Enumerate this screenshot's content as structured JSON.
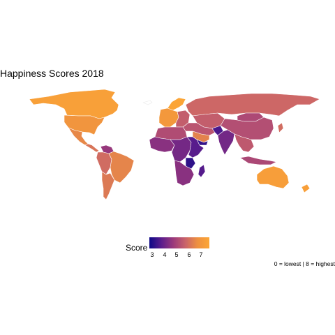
{
  "map": {
    "title": "Happiness Scores 2018",
    "caption": "0 = lowest | 8 = highest"
  },
  "legend": {
    "title": "Score",
    "ticks": [
      "3",
      "4",
      "5",
      "6",
      "7"
    ],
    "min": 2.9,
    "max": 7.6,
    "colors": [
      "#0d0887",
      "#5b1d8c",
      "#9c3a7b",
      "#c9636a",
      "#ee9040",
      "#fca636"
    ]
  },
  "regions": [
    {
      "name": "Canada",
      "score": 7.33
    },
    {
      "name": "USA",
      "score": 6.89
    },
    {
      "name": "Mexico",
      "score": 6.49
    },
    {
      "name": "Central America",
      "score": 6.1
    },
    {
      "name": "Venezuela",
      "score": 4.71
    },
    {
      "name": "Brazil",
      "score": 6.42
    },
    {
      "name": "Andean South America",
      "score": 5.9
    },
    {
      "name": "Southern Cone",
      "score": 6.2
    },
    {
      "name": "Greenland",
      "score": null
    },
    {
      "name": "Nordics",
      "score": 7.55
    },
    {
      "name": "Western Europe",
      "score": 7.0
    },
    {
      "name": "Eastern Europe",
      "score": 5.6
    },
    {
      "name": "Russia",
      "score": 5.81
    },
    {
      "name": "Central Asia",
      "score": 5.6
    },
    {
      "name": "China",
      "score": 5.25
    },
    {
      "name": "Mongolia",
      "score": 5.13
    },
    {
      "name": "Middle East",
      "score": 5.4
    },
    {
      "name": "Saudi Arabia",
      "score": 6.37
    },
    {
      "name": "Yemen",
      "score": 3.36
    },
    {
      "name": "Afghanistan",
      "score": 3.63
    },
    {
      "name": "India",
      "score": 4.19
    },
    {
      "name": "Southeast Asia",
      "score": 5.5
    },
    {
      "name": "Japan",
      "score": 5.92
    },
    {
      "name": "North Africa",
      "score": 5.2
    },
    {
      "name": "West Africa",
      "score": 4.5
    },
    {
      "name": "Central Africa",
      "score": 4.2
    },
    {
      "name": "East Africa",
      "score": 3.8
    },
    {
      "name": "Tanzania",
      "score": 3.3
    },
    {
      "name": "Southern Africa",
      "score": 4.5
    },
    {
      "name": "Madagascar",
      "score": 3.77
    },
    {
      "name": "Indonesia",
      "score": 5.09
    },
    {
      "name": "Australia",
      "score": 7.27
    },
    {
      "name": "New Zealand",
      "score": 7.32
    }
  ]
}
